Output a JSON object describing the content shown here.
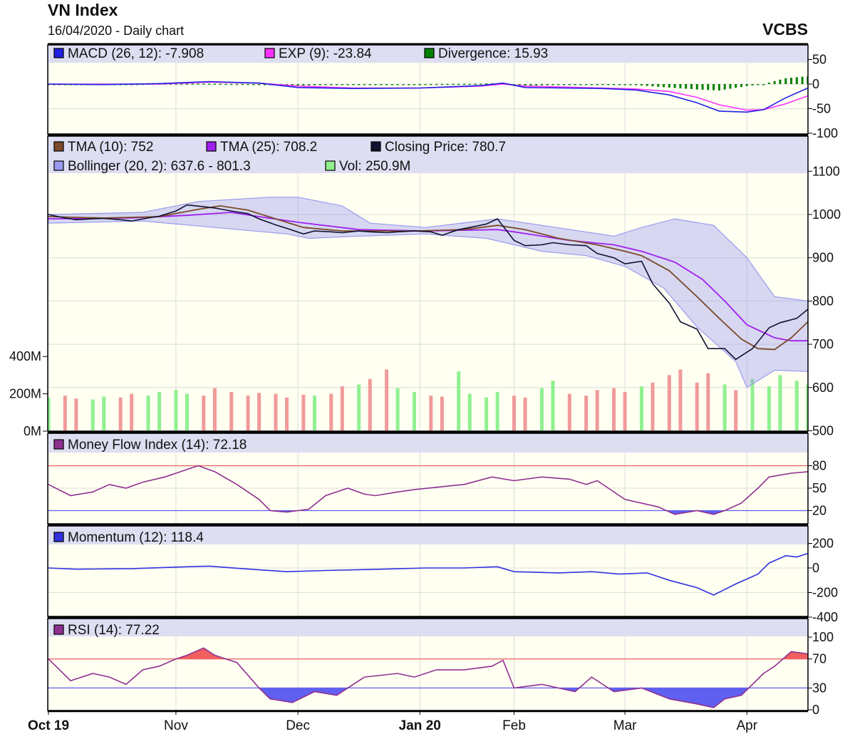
{
  "header": {
    "title": "VN Index",
    "subtitle": "16/04/2020 - Daily chart",
    "brand": "VCBS"
  },
  "colors": {
    "macd": "#2020e0",
    "exp": "#ff30ff",
    "divergence": "#008000",
    "tma10": "#7a4a2a",
    "tma25": "#a020f0",
    "close": "#101030",
    "bollinger": "#9a9af0",
    "vol_up": "#90f090",
    "vol_down": "#f09a9a",
    "mfi": "#903090",
    "momentum": "#3030e0",
    "rsi": "#903090",
    "overbought": "#f06060",
    "oversold": "#6060f0",
    "panel_bg": "#fffff2",
    "legend_bg": "#dedef2"
  },
  "chart_data": {
    "type": "line",
    "title": "VN Index",
    "x_axis": {
      "range_days": [
        0,
        137
      ],
      "ticks": [
        {
          "t": 0,
          "label": "Oct 19",
          "bold": true
        },
        {
          "t": 23,
          "label": "Nov",
          "bold": false
        },
        {
          "t": 45,
          "label": "Dec",
          "bold": false
        },
        {
          "t": 67,
          "label": "Jan 20",
          "bold": true
        },
        {
          "t": 84,
          "label": "Feb",
          "bold": false
        },
        {
          "t": 104,
          "label": "Mar",
          "bold": false
        },
        {
          "t": 126,
          "label": "Apr",
          "bold": false
        }
      ]
    },
    "macd": {
      "legend": [
        "MACD (26, 12): -7.908",
        "EXP (9): -23.84",
        "Divergence: 15.93"
      ],
      "ylim": [
        -100,
        50
      ],
      "ticks": [
        {
          "v": 50,
          "label": "50"
        },
        {
          "v": 0,
          "label": "0"
        },
        {
          "v": -50,
          "label": "-50"
        },
        {
          "v": -100,
          "label": "-100"
        }
      ],
      "macd": [
        [
          0,
          0
        ],
        [
          10,
          -1
        ],
        [
          20,
          1
        ],
        [
          29,
          5
        ],
        [
          38,
          2
        ],
        [
          45,
          -7
        ],
        [
          55,
          -9
        ],
        [
          67,
          -8
        ],
        [
          78,
          -3
        ],
        [
          82,
          2
        ],
        [
          86,
          -7
        ],
        [
          100,
          -9
        ],
        [
          106,
          -12
        ],
        [
          112,
          -22
        ],
        [
          117,
          -38
        ],
        [
          121,
          -55
        ],
        [
          126,
          -57
        ],
        [
          129,
          -52
        ],
        [
          133,
          -28
        ],
        [
          137,
          -8
        ]
      ],
      "exp": [
        [
          0,
          0
        ],
        [
          10,
          0
        ],
        [
          20,
          0
        ],
        [
          29,
          4
        ],
        [
          38,
          2
        ],
        [
          45,
          -4
        ],
        [
          55,
          -8
        ],
        [
          67,
          -8
        ],
        [
          78,
          -4
        ],
        [
          82,
          0
        ],
        [
          86,
          -4
        ],
        [
          100,
          -8
        ],
        [
          106,
          -10
        ],
        [
          112,
          -15
        ],
        [
          117,
          -27
        ],
        [
          121,
          -42
        ],
        [
          126,
          -53
        ],
        [
          129,
          -52
        ],
        [
          133,
          -40
        ],
        [
          137,
          -24
        ]
      ]
    },
    "main": {
      "legend": [
        "TMA (10): 752",
        "TMA (25): 708.2",
        "Closing Price: 780.7",
        "Bollinger (20, 2): 637.6 - 801.3",
        "Vol: 250.9M"
      ],
      "price_ylim": [
        500,
        1100
      ],
      "price_ticks": [
        {
          "v": 1100,
          "label": "1100"
        },
        {
          "v": 1000,
          "label": "1000"
        },
        {
          "v": 900,
          "label": "900"
        },
        {
          "v": 800,
          "label": "800"
        },
        {
          "v": 700,
          "label": "700"
        },
        {
          "v": 600,
          "label": "600"
        },
        {
          "v": 500,
          "label": "500"
        }
      ],
      "vol_ticks": [
        {
          "v": 400,
          "label": "400M"
        },
        {
          "v": 200,
          "label": "200M"
        },
        {
          "v": 0,
          "label": "0M"
        }
      ],
      "close": [
        [
          0,
          1000
        ],
        [
          3,
          992
        ],
        [
          5,
          988
        ],
        [
          8,
          990
        ],
        [
          10,
          991
        ],
        [
          13,
          988
        ],
        [
          15,
          985
        ],
        [
          18,
          992
        ],
        [
          20,
          996
        ],
        [
          23,
          1008
        ],
        [
          25,
          1022
        ],
        [
          28,
          1018
        ],
        [
          30,
          1015
        ],
        [
          33,
          1008
        ],
        [
          36,
          1002
        ],
        [
          38,
          990
        ],
        [
          41,
          976
        ],
        [
          43,
          968
        ],
        [
          46,
          955
        ],
        [
          48,
          962
        ],
        [
          51,
          960
        ],
        [
          53,
          958
        ],
        [
          56,
          962
        ],
        [
          58,
          960
        ],
        [
          61,
          958
        ],
        [
          63,
          960
        ],
        [
          66,
          962
        ],
        [
          69,
          960
        ],
        [
          71,
          952
        ],
        [
          74,
          965
        ],
        [
          76,
          970
        ],
        [
          79,
          978
        ],
        [
          81,
          990
        ],
        [
          84,
          940
        ],
        [
          86,
          928
        ],
        [
          89,
          930
        ],
        [
          91,
          935
        ],
        [
          94,
          930
        ],
        [
          97,
          928
        ],
        [
          99,
          910
        ],
        [
          102,
          900
        ],
        [
          104,
          886
        ],
        [
          107,
          892
        ],
        [
          109,
          840
        ],
        [
          112,
          795
        ],
        [
          114,
          752
        ],
        [
          117,
          735
        ],
        [
          119,
          690
        ],
        [
          122,
          690
        ],
        [
          124,
          665
        ],
        [
          127,
          690
        ],
        [
          130,
          738
        ],
        [
          132,
          750
        ],
        [
          135,
          760
        ],
        [
          137,
          781
        ]
      ],
      "tma10": [
        [
          0,
          995
        ],
        [
          10,
          992
        ],
        [
          20,
          995
        ],
        [
          27,
          1012
        ],
        [
          31,
          1020
        ],
        [
          36,
          1010
        ],
        [
          41,
          990
        ],
        [
          46,
          970
        ],
        [
          53,
          962
        ],
        [
          66,
          962
        ],
        [
          75,
          965
        ],
        [
          81,
          975
        ],
        [
          86,
          965
        ],
        [
          92,
          945
        ],
        [
          99,
          930
        ],
        [
          104,
          915
        ],
        [
          107,
          905
        ],
        [
          112,
          870
        ],
        [
          117,
          810
        ],
        [
          121,
          760
        ],
        [
          125,
          712
        ],
        [
          128,
          690
        ],
        [
          131,
          688
        ],
        [
          134,
          715
        ],
        [
          137,
          752
        ]
      ],
      "tma25": [
        [
          0,
          990
        ],
        [
          15,
          992
        ],
        [
          25,
          998
        ],
        [
          33,
          1005
        ],
        [
          38,
          995
        ],
        [
          45,
          982
        ],
        [
          56,
          965
        ],
        [
          68,
          962
        ],
        [
          81,
          965
        ],
        [
          84,
          960
        ],
        [
          94,
          940
        ],
        [
          102,
          930
        ],
        [
          107,
          915
        ],
        [
          113,
          890
        ],
        [
          118,
          850
        ],
        [
          122,
          800
        ],
        [
          126,
          745
        ],
        [
          131,
          715
        ],
        [
          134,
          708
        ],
        [
          137,
          708
        ]
      ],
      "boll_upper": [
        [
          0,
          1000
        ],
        [
          17,
          1005
        ],
        [
          27,
          1030
        ],
        [
          40,
          1040
        ],
        [
          45,
          1040
        ],
        [
          53,
          1020
        ],
        [
          58,
          980
        ],
        [
          68,
          970
        ],
        [
          81,
          990
        ],
        [
          89,
          975
        ],
        [
          102,
          950
        ],
        [
          107,
          970
        ],
        [
          113,
          990
        ],
        [
          120,
          975
        ],
        [
          126,
          900
        ],
        [
          131,
          810
        ],
        [
          137,
          800
        ]
      ],
      "boll_lower": [
        [
          0,
          980
        ],
        [
          17,
          985
        ],
        [
          30,
          970
        ],
        [
          43,
          955
        ],
        [
          47,
          945
        ],
        [
          56,
          950
        ],
        [
          68,
          955
        ],
        [
          79,
          945
        ],
        [
          89,
          915
        ],
        [
          97,
          905
        ],
        [
          104,
          880
        ],
        [
          111,
          830
        ],
        [
          117,
          740
        ],
        [
          124,
          660
        ],
        [
          126,
          600
        ],
        [
          131,
          640
        ],
        [
          137,
          637
        ]
      ],
      "volume_m": [
        180,
        190,
        175,
        170,
        185,
        180,
        200,
        190,
        210,
        220,
        200,
        190,
        230,
        210,
        190,
        205,
        200,
        180,
        195,
        190,
        200,
        240,
        250,
        280,
        330,
        230,
        210,
        190,
        185,
        320,
        200,
        180,
        210,
        190,
        180,
        230,
        270,
        200,
        190,
        220,
        230,
        210,
        240,
        260,
        300,
        330,
        260,
        310,
        250,
        220,
        280,
        240,
        300,
        270,
        250
      ]
    },
    "mfi": {
      "legend": [
        "Money Flow Index (14): 72.18"
      ],
      "ylim": [
        0,
        100
      ],
      "ticks": [
        {
          "v": 80,
          "label": "80",
          "tone": "overbought"
        },
        {
          "v": 50,
          "label": "50",
          "tone": ""
        },
        {
          "v": 20,
          "label": "20",
          "tone": "oversold"
        }
      ],
      "overbought": 80,
      "oversold": 20,
      "values": [
        [
          0,
          55
        ],
        [
          4,
          40
        ],
        [
          8,
          45
        ],
        [
          11,
          55
        ],
        [
          14,
          50
        ],
        [
          17,
          58
        ],
        [
          21,
          65
        ],
        [
          25,
          75
        ],
        [
          27,
          80
        ],
        [
          30,
          72
        ],
        [
          34,
          55
        ],
        [
          38,
          35
        ],
        [
          40,
          20
        ],
        [
          43,
          18
        ],
        [
          45,
          20
        ],
        [
          47,
          22
        ],
        [
          50,
          40
        ],
        [
          54,
          50
        ],
        [
          57,
          42
        ],
        [
          59,
          40
        ],
        [
          63,
          45
        ],
        [
          66,
          48
        ],
        [
          71,
          52
        ],
        [
          75,
          55
        ],
        [
          80,
          65
        ],
        [
          84,
          60
        ],
        [
          89,
          65
        ],
        [
          94,
          62
        ],
        [
          97,
          55
        ],
        [
          99,
          60
        ],
        [
          104,
          35
        ],
        [
          110,
          25
        ],
        [
          113,
          15
        ],
        [
          117,
          20
        ],
        [
          120,
          15
        ],
        [
          122,
          20
        ],
        [
          125,
          30
        ],
        [
          128,
          50
        ],
        [
          130,
          65
        ],
        [
          134,
          70
        ],
        [
          137,
          72
        ]
      ]
    },
    "momentum": {
      "legend": [
        "Momentum (12): 118.4"
      ],
      "ylim": [
        -400,
        200
      ],
      "ticks": [
        {
          "v": 200,
          "label": "200"
        },
        {
          "v": 0,
          "label": "0"
        },
        {
          "v": -200,
          "label": "-200"
        },
        {
          "v": -400,
          "label": "-400"
        }
      ],
      "values": [
        [
          0,
          0
        ],
        [
          5,
          -10
        ],
        [
          15,
          -5
        ],
        [
          25,
          10
        ],
        [
          29,
          15
        ],
        [
          35,
          -5
        ],
        [
          43,
          -30
        ],
        [
          50,
          -20
        ],
        [
          60,
          -10
        ],
        [
          68,
          0
        ],
        [
          75,
          0
        ],
        [
          81,
          10
        ],
        [
          84,
          -30
        ],
        [
          92,
          -40
        ],
        [
          98,
          -30
        ],
        [
          103,
          -50
        ],
        [
          108,
          -40
        ],
        [
          112,
          -100
        ],
        [
          117,
          -160
        ],
        [
          120,
          -220
        ],
        [
          124,
          -130
        ],
        [
          128,
          -50
        ],
        [
          130,
          40
        ],
        [
          133,
          100
        ],
        [
          135,
          90
        ],
        [
          137,
          118
        ]
      ]
    },
    "rsi": {
      "legend": [
        "RSI (14): 77.22"
      ],
      "ylim": [
        0,
        100
      ],
      "ticks": [
        {
          "v": 100,
          "label": "100",
          "tone": ""
        },
        {
          "v": 70,
          "label": "70",
          "tone": "overbought"
        },
        {
          "v": 30,
          "label": "30",
          "tone": "oversold"
        },
        {
          "v": 0,
          "label": "0",
          "tone": ""
        }
      ],
      "overbought": 70,
      "oversold": 30,
      "values": [
        [
          0,
          70
        ],
        [
          4,
          40
        ],
        [
          8,
          50
        ],
        [
          11,
          45
        ],
        [
          14,
          35
        ],
        [
          17,
          55
        ],
        [
          20,
          60
        ],
        [
          23,
          70
        ],
        [
          25,
          75
        ],
        [
          28,
          85
        ],
        [
          30,
          75
        ],
        [
          34,
          65
        ],
        [
          38,
          30
        ],
        [
          40,
          15
        ],
        [
          44,
          10
        ],
        [
          48,
          25
        ],
        [
          52,
          20
        ],
        [
          57,
          45
        ],
        [
          63,
          50
        ],
        [
          66,
          45
        ],
        [
          70,
          55
        ],
        [
          75,
          55
        ],
        [
          80,
          60
        ],
        [
          82,
          68
        ],
        [
          84,
          30
        ],
        [
          89,
          35
        ],
        [
          95,
          25
        ],
        [
          98,
          45
        ],
        [
          102,
          25
        ],
        [
          107,
          30
        ],
        [
          112,
          15
        ],
        [
          117,
          8
        ],
        [
          120,
          3
        ],
        [
          122,
          15
        ],
        [
          125,
          20
        ],
        [
          129,
          50
        ],
        [
          131,
          60
        ],
        [
          134,
          80
        ],
        [
          137,
          77
        ]
      ]
    }
  }
}
